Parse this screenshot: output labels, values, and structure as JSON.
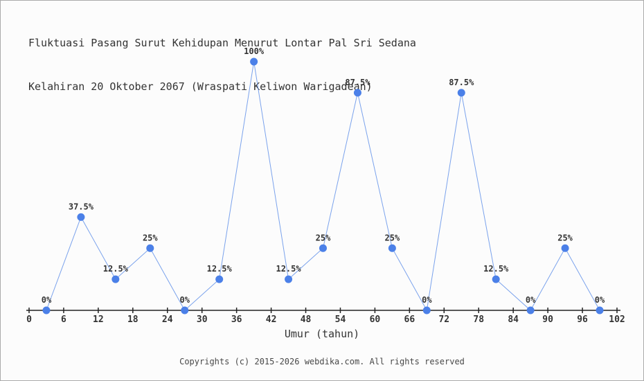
{
  "title": {
    "line1": "Fluktuasi Pasang Surut Kehidupan Menurut Lontar Pal Sri Sedana",
    "line2": "Kelahiran 20 Oktober 2067 (Wraspati Keliwon Warigadean)"
  },
  "chart_data": {
    "type": "line",
    "x": [
      3,
      9,
      15,
      21,
      27,
      33,
      39,
      45,
      51,
      57,
      63,
      69,
      75,
      81,
      87,
      93,
      99
    ],
    "values": [
      0,
      37.5,
      12.5,
      25,
      0,
      12.5,
      100,
      12.5,
      25,
      87.5,
      25,
      0,
      87.5,
      12.5,
      0,
      25,
      0
    ],
    "point_labels": [
      "0%",
      "37.5%",
      "12.5%",
      "25%",
      "0%",
      "12.5%",
      "100%",
      "12.5%",
      "25%",
      "87.5%",
      "25%",
      "0%",
      "87.5%",
      "12.5%",
      "0%",
      "25%",
      "0%"
    ],
    "x_ticks": [
      0,
      6,
      12,
      18,
      24,
      30,
      36,
      42,
      48,
      54,
      60,
      66,
      72,
      78,
      84,
      90,
      96,
      102
    ],
    "xlabel": "Umur (tahun)",
    "xlim": [
      0,
      102
    ],
    "ylim": [
      0,
      100
    ],
    "grid": false,
    "legend": "none",
    "colors": {
      "marker": "#4b80e8",
      "line": "#7aa2ec",
      "text": "#333333",
      "axis": "#222222"
    }
  },
  "footer": {
    "text": "Copyrights (c) 2015-2026 webdika.com. All rights reserved"
  }
}
